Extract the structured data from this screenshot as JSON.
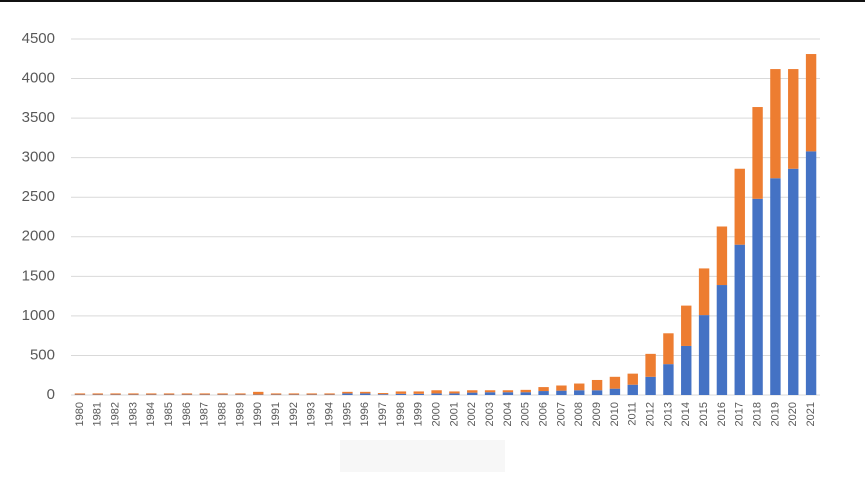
{
  "chart_data": {
    "type": "stacked_bar",
    "categories": [
      "1980",
      "1981",
      "1982",
      "1983",
      "1984",
      "1985",
      "1986",
      "1987",
      "1988",
      "1989",
      "1990",
      "1991",
      "1992",
      "1993",
      "1994",
      "1995",
      "1996",
      "1997",
      "1998",
      "1999",
      "2000",
      "2001",
      "2002",
      "2003",
      "2004",
      "2005",
      "2006",
      "2007",
      "2008",
      "2009",
      "2010",
      "2011",
      "2012",
      "2013",
      "2014",
      "2015",
      "2016",
      "2017",
      "2018",
      "2019",
      "2020",
      "2021"
    ],
    "series": [
      {
        "color": "#4472c4",
        "values": [
          5,
          5,
          5,
          5,
          5,
          5,
          5,
          5,
          5,
          5,
          5,
          5,
          5,
          5,
          5,
          20,
          20,
          10,
          15,
          15,
          20,
          20,
          30,
          35,
          35,
          35,
          50,
          55,
          60,
          60,
          80,
          130,
          230,
          390,
          620,
          1010,
          1390,
          1900,
          2480,
          2740,
          2860,
          3080
        ]
      },
      {
        "color": "#ed7d31",
        "values": [
          15,
          15,
          15,
          15,
          15,
          15,
          15,
          15,
          15,
          15,
          35,
          15,
          15,
          15,
          15,
          20,
          20,
          15,
          30,
          30,
          40,
          25,
          30,
          25,
          25,
          30,
          50,
          65,
          85,
          130,
          150,
          140,
          290,
          390,
          510,
          590,
          740,
          960,
          1160,
          1380,
          1260,
          1230
        ]
      }
    ],
    "ylim": [
      0,
      4500
    ],
    "yticks": [
      0,
      500,
      1000,
      1500,
      2000,
      2500,
      3000,
      3500,
      4000,
      4500
    ],
    "grid": true
  }
}
